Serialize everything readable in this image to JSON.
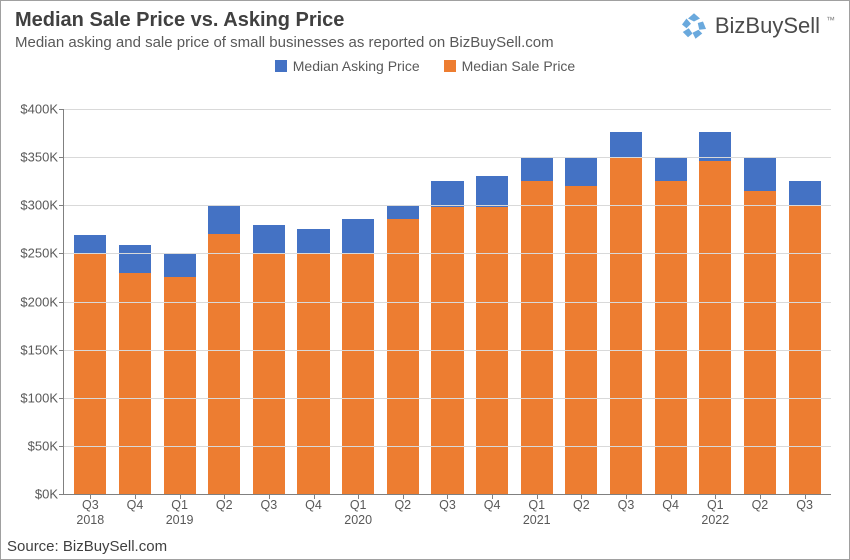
{
  "title": "Median Sale Price vs. Asking Price",
  "subtitle": "Median asking and sale price of small businesses as reported on BizBuySell.com",
  "brand": "BizBuySell",
  "source": "Source: BizBuySell.com",
  "legend": {
    "asking": {
      "label": "Median Asking Price",
      "color": "#4472c4"
    },
    "sale": {
      "label": "Median Sale Price",
      "color": "#ed7d31"
    }
  },
  "chart": {
    "type": "bar",
    "ylim": [
      0,
      400
    ],
    "ytick_step": 50,
    "ytick_prefix": "$",
    "ytick_suffix": "K",
    "grid_color": "#d9d9d9",
    "axis_color": "#808080",
    "label_fontsize": 13,
    "xtick_fontsize": 12.5,
    "categories": [
      {
        "q": "Q3",
        "year": "2018"
      },
      {
        "q": "Q4",
        "year": ""
      },
      {
        "q": "Q1",
        "year": "2019"
      },
      {
        "q": "Q2",
        "year": ""
      },
      {
        "q": "Q3",
        "year": ""
      },
      {
        "q": "Q4",
        "year": ""
      },
      {
        "q": "Q1",
        "year": "2020"
      },
      {
        "q": "Q2",
        "year": ""
      },
      {
        "q": "Q3",
        "year": ""
      },
      {
        "q": "Q4",
        "year": ""
      },
      {
        "q": "Q1",
        "year": "2021"
      },
      {
        "q": "Q2",
        "year": ""
      },
      {
        "q": "Q3",
        "year": ""
      },
      {
        "q": "Q4",
        "year": ""
      },
      {
        "q": "Q1",
        "year": "2022"
      },
      {
        "q": "Q2",
        "year": ""
      },
      {
        "q": "Q3",
        "year": ""
      }
    ],
    "series": {
      "sale": [
        249,
        230,
        225,
        270,
        250,
        250,
        250,
        286,
        298,
        298,
        325,
        320,
        350,
        325,
        346,
        315,
        300
      ],
      "asking": [
        269,
        259,
        249,
        299,
        279,
        275,
        286,
        300,
        325,
        330,
        350,
        350,
        376,
        350,
        376,
        350,
        325
      ]
    }
  }
}
